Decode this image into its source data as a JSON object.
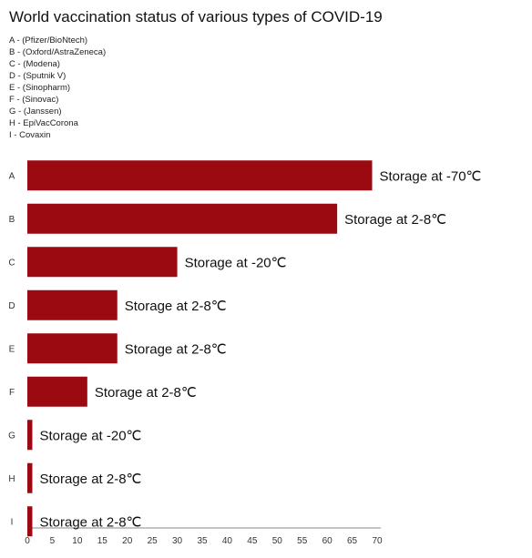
{
  "title": "World vaccination status of various types of COVID-19",
  "legend": [
    "A - (Pfizer/BioNtech)",
    "B - (Oxford/AstraZeneca)",
    "C - (Modena)",
    "D - (Sputnik V)",
    "E - (Sinopharm)",
    "F - (Sinovac)",
    "G - (Janssen)",
    "H - EpiVacCorona",
    "I - Covaxin"
  ],
  "colors": {
    "bar": "#9b0a10",
    "axis": "#888888"
  },
  "chart_data": {
    "type": "bar",
    "orientation": "horizontal",
    "categories": [
      "A",
      "B",
      "C",
      "D",
      "E",
      "F",
      "G",
      "H",
      "I"
    ],
    "values": [
      69,
      62,
      30,
      18,
      18,
      12,
      1,
      1,
      1
    ],
    "annotations": [
      "Storage at -70℃",
      "Storage at 2-8℃",
      "Storage at -20℃",
      "Storage at 2-8℃",
      "Storage at 2-8℃",
      "Storage at 2-8℃",
      "Storage at -20℃",
      "Storage at 2-8℃",
      "Storage at 2-8℃"
    ],
    "xticks": [
      0,
      5,
      10,
      15,
      20,
      25,
      30,
      35,
      40,
      45,
      50,
      55,
      60,
      65,
      70
    ],
    "xlim": [
      0,
      70
    ],
    "grid": false,
    "title": "World vaccination status of various types of COVID-19"
  }
}
